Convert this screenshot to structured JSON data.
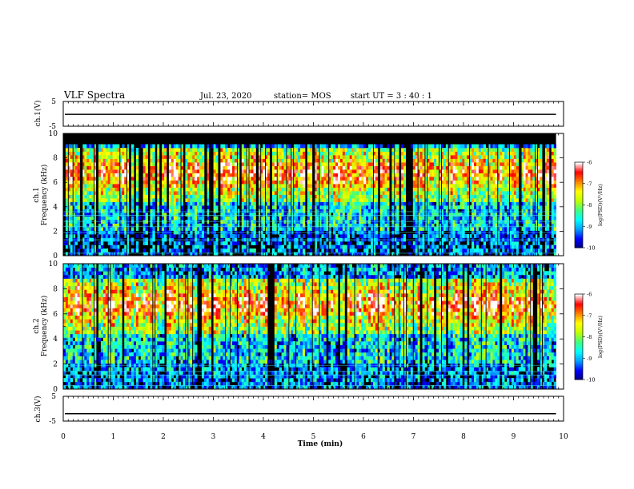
{
  "header": {
    "title": "VLF Spectra",
    "date": "Jul. 23, 2020",
    "station": "station= MOS",
    "start": "start  UT  =   3  : 40 : 1"
  },
  "chart_data": [
    {
      "type": "line",
      "name": "ch.1 waveform",
      "ylabel": "ch.1(V)",
      "ylim": [
        -5,
        5
      ],
      "yticks": [
        "5",
        "-5"
      ],
      "xlim": [
        0,
        10
      ],
      "level": -0.2
    },
    {
      "type": "heatmap",
      "name": "ch.1 spectrogram",
      "ylabel": "ch.1\nFrequency (kHz)",
      "ylabel_lines": [
        "ch.1",
        "Frequency (kHz)"
      ],
      "ylim": [
        0,
        10
      ],
      "yticks": [
        "0",
        "2",
        "4",
        "6",
        "8",
        "10"
      ],
      "xlim": [
        0,
        10
      ],
      "data_end_min": 9.85,
      "colorbar": {
        "label": "log(PSD)(V²/Hz)",
        "range": [
          -10,
          -6
        ],
        "ticks": [
          "-6",
          "-7",
          "-8",
          "-9",
          "-10"
        ]
      }
    },
    {
      "type": "heatmap",
      "name": "ch.2 spectrogram",
      "ylabel": "ch.2\nFrequency (kHz)",
      "ylabel_lines": [
        "ch.2",
        "Frequency (kHz)"
      ],
      "ylim": [
        0,
        10
      ],
      "yticks": [
        "0",
        "2",
        "4",
        "6",
        "8",
        "10"
      ],
      "xlim": [
        0,
        10
      ],
      "data_end_min": 9.85,
      "colorbar": {
        "label": "log(PSD)(V²/Hz)",
        "range": [
          -10,
          -6
        ],
        "ticks": [
          "-6",
          "-7",
          "-8",
          "-9",
          "-10"
        ]
      }
    },
    {
      "type": "line",
      "name": "ch.3 waveform",
      "ylabel": "ch.3(V)",
      "ylim": [
        -5,
        5
      ],
      "yticks": [
        "5",
        "-5"
      ],
      "xlim": [
        0,
        10
      ],
      "xticks": [
        "0",
        "1",
        "2",
        "3",
        "4",
        "5",
        "6",
        "7",
        "8",
        "9",
        "10"
      ],
      "xlabel": "Time  (min)",
      "level": -2
    }
  ],
  "colors": {
    "colormap": [
      "#00007f",
      "#0000ff",
      "#00a0ff",
      "#00ffff",
      "#40ff80",
      "#c0ff00",
      "#ffff00",
      "#ff8000",
      "#ff0000",
      "#ffffff"
    ]
  }
}
